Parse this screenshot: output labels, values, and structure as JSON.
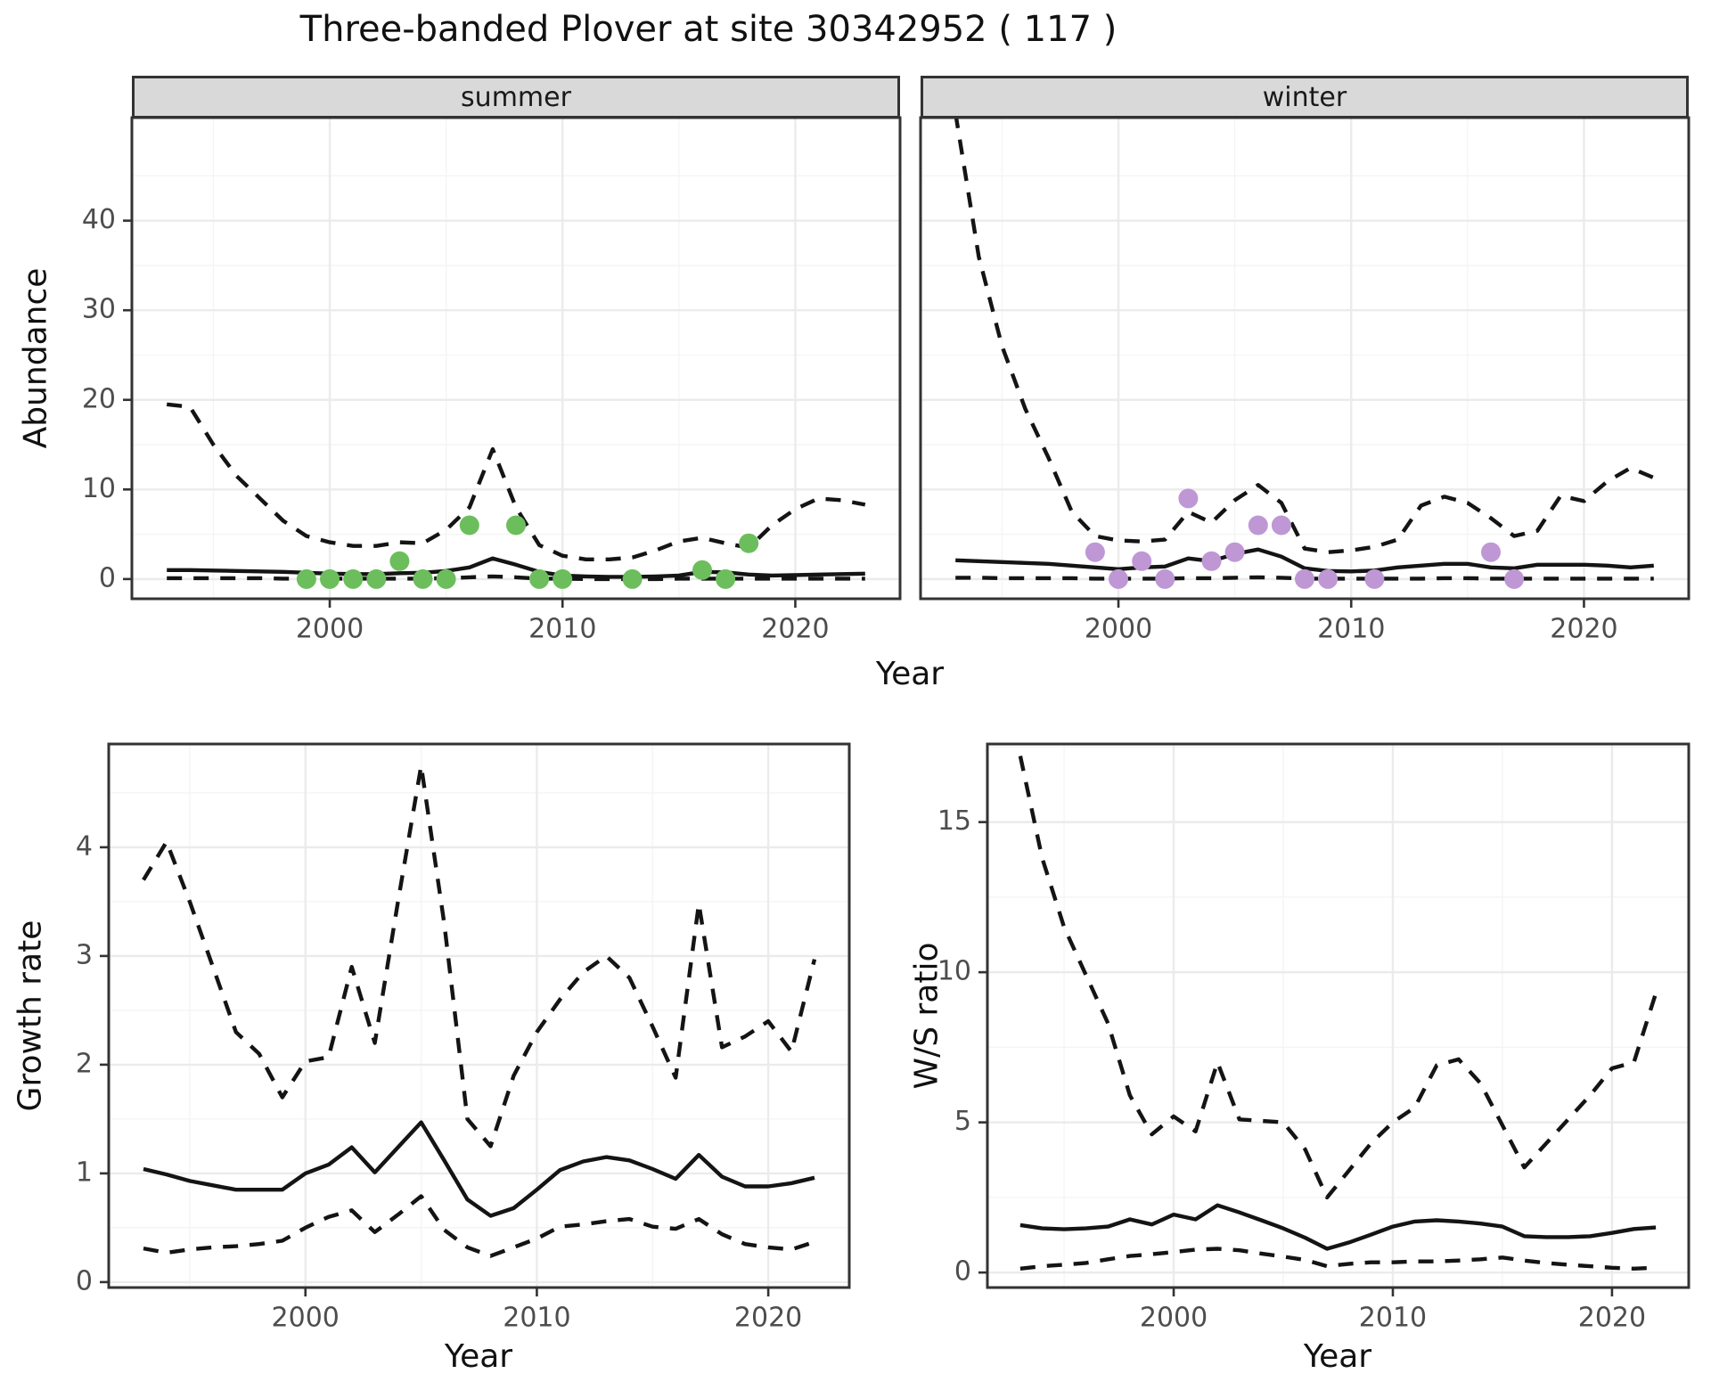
{
  "title": "Three-banded Plover at site 30342952 ( 117 )",
  "facets": [
    {
      "label": "summer"
    },
    {
      "label": "winter"
    }
  ],
  "axes": {
    "x": {
      "title": "Year"
    },
    "abundance": {
      "title": "Abundance"
    },
    "growth": {
      "title": "Growth rate"
    },
    "ws": {
      "title": "W/S ratio"
    }
  },
  "colors": {
    "summer_points": "#6cbe5c",
    "winter_points": "#bf97d4",
    "line": "#141414",
    "strip_bg": "#d9d9d9",
    "grid_major": "#ebebeb",
    "tick_text": "#4d4d4d"
  },
  "chart_data": [
    {
      "id": "abundance-summer",
      "type": "line",
      "facet": "summer",
      "ylabel": "Abundance",
      "xlabel": "Year",
      "xlim": [
        1991.5,
        2024.5
      ],
      "ylim": [
        -2.2,
        51.5
      ],
      "xticks": [
        2000,
        2010,
        2020
      ],
      "xminor": [
        1995,
        2005,
        2015
      ],
      "yticks": [
        0,
        10,
        20,
        30,
        40
      ],
      "yminor": [
        5,
        15,
        25,
        35,
        45
      ],
      "show_y_labels": true,
      "x": [
        1993,
        1994,
        1995,
        1996,
        1997,
        1998,
        1999,
        2000,
        2001,
        2002,
        2003,
        2004,
        2005,
        2006,
        2007,
        2008,
        2009,
        2010,
        2011,
        2012,
        2013,
        2014,
        2015,
        2016,
        2017,
        2018,
        2019,
        2020,
        2021,
        2022,
        2023
      ],
      "series": [
        {
          "name": "upper-ci",
          "style": "dashed",
          "values": [
            19.5,
            19.2,
            15,
            11.5,
            9,
            6.5,
            4.8,
            4.1,
            3.7,
            3.7,
            4.1,
            4,
            5.5,
            8,
            14.5,
            8,
            3.8,
            2.6,
            2.2,
            2.2,
            2.4,
            3.2,
            4.2,
            4.6,
            4,
            3.5,
            6,
            7.8,
            9,
            8.8,
            8.3
          ]
        },
        {
          "name": "median",
          "style": "solid",
          "values": [
            1,
            1,
            0.95,
            0.9,
            0.85,
            0.8,
            0.7,
            0.6,
            0.55,
            0.55,
            0.65,
            0.7,
            0.9,
            1.3,
            2.3,
            1.6,
            0.8,
            0.4,
            0.3,
            0.25,
            0.25,
            0.3,
            0.4,
            0.8,
            0.75,
            0.5,
            0.4,
            0.45,
            0.5,
            0.55,
            0.6
          ]
        },
        {
          "name": "lower-ci",
          "style": "dashed",
          "values": [
            0.1,
            0.1,
            0.1,
            0.1,
            0.1,
            0.05,
            0.05,
            0.05,
            0.05,
            0.05,
            0.05,
            0.05,
            0.1,
            0.2,
            0.3,
            0.2,
            0.05,
            0.05,
            0,
            0,
            0,
            0,
            0.05,
            0.05,
            0.05,
            0.05,
            0.05,
            0.05,
            0.05,
            0.05,
            0.05
          ]
        }
      ],
      "points": {
        "name": "observed-count",
        "color": "#6cbe5c",
        "data": [
          [
            1999,
            0
          ],
          [
            2000,
            0
          ],
          [
            2001,
            0
          ],
          [
            2002,
            0
          ],
          [
            2003,
            2
          ],
          [
            2004,
            0
          ],
          [
            2005,
            0
          ],
          [
            2006,
            6
          ],
          [
            2008,
            6
          ],
          [
            2009,
            0
          ],
          [
            2010,
            0
          ],
          [
            2013,
            0
          ],
          [
            2016,
            1
          ],
          [
            2017,
            0
          ],
          [
            2018,
            4
          ]
        ]
      }
    },
    {
      "id": "abundance-winter",
      "type": "line",
      "facet": "winter",
      "ylabel": "Abundance",
      "xlabel": "Year",
      "xlim": [
        1991.5,
        2024.5
      ],
      "ylim": [
        -2.2,
        51.5
      ],
      "xticks": [
        2000,
        2010,
        2020
      ],
      "xminor": [
        1995,
        2005,
        2015
      ],
      "yticks": [
        0,
        10,
        20,
        30,
        40
      ],
      "yminor": [
        5,
        15,
        25,
        35,
        45
      ],
      "show_y_labels": false,
      "x": [
        1993,
        1994,
        1995,
        1996,
        1997,
        1998,
        1999,
        2000,
        2001,
        2002,
        2003,
        2004,
        2005,
        2006,
        2007,
        2008,
        2009,
        2010,
        2011,
        2012,
        2013,
        2014,
        2015,
        2016,
        2017,
        2018,
        2019,
        2020,
        2021,
        2022,
        2023
      ],
      "series": [
        {
          "name": "upper-ci",
          "style": "dashed",
          "values": [
            52,
            36,
            26,
            19,
            13.5,
            7.5,
            4.8,
            4.3,
            4.2,
            4.4,
            7.5,
            6.3,
            8.8,
            10.5,
            8.5,
            3.4,
            3,
            3.2,
            3.6,
            4.4,
            8.2,
            9.2,
            8.5,
            6.8,
            4.8,
            5.4,
            9.3,
            8.7,
            10.9,
            12.4,
            11.3
          ]
        },
        {
          "name": "median",
          "style": "solid",
          "values": [
            2.1,
            2,
            1.9,
            1.8,
            1.7,
            1.5,
            1.3,
            1.1,
            1.3,
            1.4,
            2.3,
            2,
            2.8,
            3.3,
            2.5,
            1.2,
            0.9,
            0.85,
            0.95,
            1.3,
            1.5,
            1.7,
            1.7,
            1.3,
            1.2,
            1.6,
            1.6,
            1.6,
            1.5,
            1.3,
            1.5
          ]
        },
        {
          "name": "lower-ci",
          "style": "dashed",
          "values": [
            0.15,
            0.15,
            0.1,
            0.1,
            0.1,
            0.1,
            0.05,
            0.05,
            0.05,
            0.05,
            0.1,
            0.1,
            0.15,
            0.2,
            0.15,
            0.05,
            0.05,
            0.05,
            0.05,
            0.05,
            0.05,
            0.1,
            0.1,
            0.05,
            0.05,
            0.05,
            0.05,
            0.05,
            0.05,
            0.05,
            0.05
          ]
        }
      ],
      "points": {
        "name": "observed-count",
        "color": "#bf97d4",
        "data": [
          [
            1999,
            3
          ],
          [
            2000,
            0
          ],
          [
            2001,
            2
          ],
          [
            2002,
            0
          ],
          [
            2003,
            9
          ],
          [
            2004,
            2
          ],
          [
            2005,
            3
          ],
          [
            2006,
            6
          ],
          [
            2007,
            6
          ],
          [
            2008,
            0
          ],
          [
            2009,
            0
          ],
          [
            2011,
            0
          ],
          [
            2016,
            3
          ],
          [
            2017,
            0
          ]
        ]
      }
    },
    {
      "id": "growth-rate",
      "type": "line",
      "facet": null,
      "ylabel": "Growth rate",
      "xlabel": "Year",
      "xlim": [
        1991.5,
        2023.5
      ],
      "ylim": [
        -0.05,
        4.95
      ],
      "xticks": [
        2000,
        2010,
        2020
      ],
      "xminor": [
        1995,
        2005,
        2015
      ],
      "yticks": [
        0,
        1,
        2,
        3,
        4
      ],
      "yminor": [
        0.5,
        1.5,
        2.5,
        3.5,
        4.5
      ],
      "show_y_labels": true,
      "x": [
        1993,
        1994,
        1995,
        1996,
        1997,
        1998,
        1999,
        2000,
        2001,
        2002,
        2003,
        2004,
        2005,
        2006,
        2007,
        2008,
        2009,
        2010,
        2011,
        2012,
        2013,
        2014,
        2015,
        2016,
        2017,
        2018,
        2019,
        2020,
        2021,
        2022
      ],
      "series": [
        {
          "name": "upper-ci",
          "style": "dashed",
          "values": [
            3.7,
            4.05,
            3.5,
            2.9,
            2.3,
            2.1,
            1.7,
            2.03,
            2.07,
            2.9,
            2.2,
            3.5,
            4.75,
            3.3,
            1.5,
            1.25,
            1.9,
            2.3,
            2.6,
            2.85,
            3,
            2.8,
            2.35,
            1.88,
            3.48,
            2.16,
            2.26,
            2.4,
            2.12,
            2.97
          ]
        },
        {
          "name": "median",
          "style": "solid",
          "values": [
            1.04,
            0.99,
            0.93,
            0.89,
            0.85,
            0.85,
            0.85,
            1,
            1.08,
            1.24,
            1.01,
            1.24,
            1.47,
            1.12,
            0.76,
            0.61,
            0.68,
            0.85,
            1.03,
            1.11,
            1.15,
            1.12,
            1.04,
            0.95,
            1.17,
            0.97,
            0.88,
            0.88,
            0.91,
            0.96
          ]
        },
        {
          "name": "lower-ci",
          "style": "dashed",
          "values": [
            0.31,
            0.27,
            0.3,
            0.32,
            0.33,
            0.35,
            0.38,
            0.5,
            0.6,
            0.66,
            0.46,
            0.62,
            0.79,
            0.48,
            0.32,
            0.24,
            0.32,
            0.4,
            0.51,
            0.53,
            0.56,
            0.58,
            0.51,
            0.49,
            0.58,
            0.44,
            0.35,
            0.32,
            0.3,
            0.37
          ]
        }
      ],
      "points": null
    },
    {
      "id": "ws-ratio",
      "type": "line",
      "facet": null,
      "ylabel": "W/S ratio",
      "xlabel": "Year",
      "xlim": [
        1991.5,
        2023.5
      ],
      "ylim": [
        -0.5,
        17.6
      ],
      "xticks": [
        2000,
        2010,
        2020
      ],
      "xminor": [
        1995,
        2005,
        2015
      ],
      "yticks": [
        0,
        5,
        10,
        15
      ],
      "yminor": [
        2.5,
        7.5,
        12.5,
        17.5
      ],
      "show_y_labels": true,
      "x": [
        1993,
        1994,
        1995,
        1996,
        1997,
        1998,
        1999,
        2000,
        2001,
        2002,
        2003,
        2004,
        2005,
        2006,
        2007,
        2008,
        2009,
        2010,
        2011,
        2012,
        2013,
        2014,
        2015,
        2016,
        2017,
        2018,
        2019,
        2020,
        2021,
        2022
      ],
      "series": [
        {
          "name": "upper-ci",
          "style": "dashed",
          "values": [
            17.2,
            13.8,
            11.5,
            9.9,
            8.3,
            5.9,
            4.6,
            5.2,
            4.7,
            7,
            5.1,
            5.05,
            5,
            4.1,
            2.5,
            3.4,
            4.3,
            5,
            5.5,
            6.9,
            7.1,
            6.3,
            4.9,
            3.5,
            4.3,
            5.1,
            5.9,
            6.8,
            7,
            9.3
          ]
        },
        {
          "name": "median",
          "style": "solid",
          "values": [
            1.58,
            1.47,
            1.44,
            1.47,
            1.53,
            1.77,
            1.6,
            1.93,
            1.77,
            2.24,
            2,
            1.74,
            1.47,
            1.16,
            0.79,
            1,
            1.26,
            1.53,
            1.7,
            1.74,
            1.7,
            1.63,
            1.53,
            1.21,
            1.18,
            1.18,
            1.21,
            1.32,
            1.45,
            1.5
          ]
        },
        {
          "name": "lower-ci",
          "style": "dashed",
          "values": [
            0.13,
            0.21,
            0.26,
            0.32,
            0.44,
            0.55,
            0.61,
            0.68,
            0.76,
            0.79,
            0.74,
            0.63,
            0.53,
            0.42,
            0.21,
            0.29,
            0.34,
            0.34,
            0.37,
            0.37,
            0.4,
            0.44,
            0.5,
            0.4,
            0.32,
            0.26,
            0.21,
            0.16,
            0.13,
            0.16
          ]
        }
      ],
      "points": null
    }
  ]
}
